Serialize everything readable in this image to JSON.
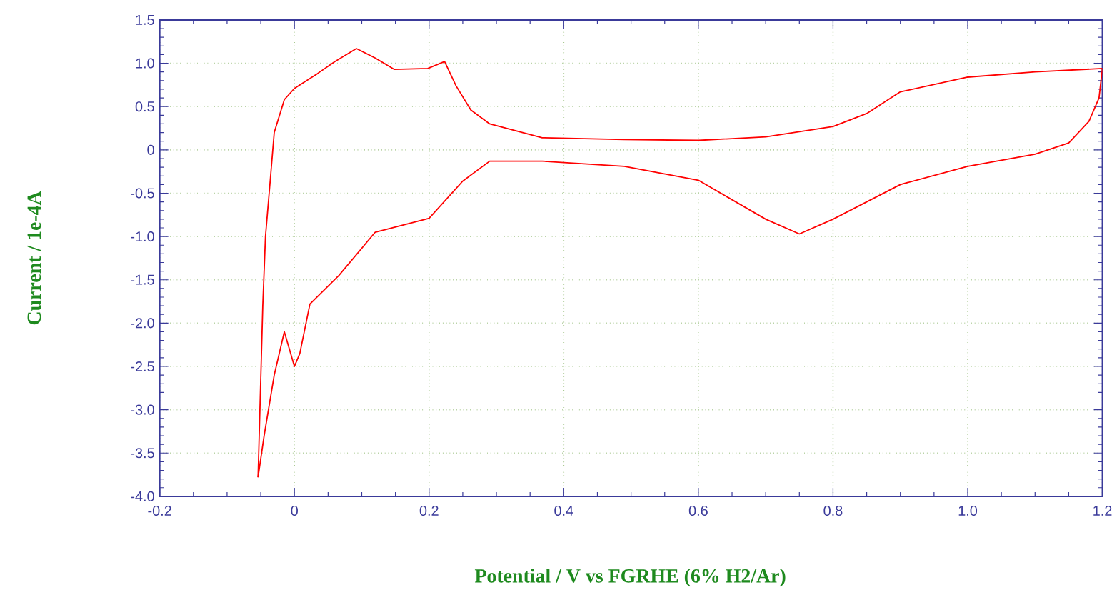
{
  "chart_data": {
    "type": "line",
    "xlabel": "Potential / V vs FGRHE (6% H2/Ar)",
    "ylabel": "Current / 1e-4A",
    "series": [
      {
        "color": "#ff0000",
        "x": [
          -0.054,
          -0.047,
          -0.043,
          -0.036,
          -0.03,
          -0.015,
          0.0,
          0.034,
          0.06,
          0.092,
          0.12,
          0.148,
          0.198,
          0.223,
          0.24,
          0.262,
          0.29,
          0.368,
          0.49,
          0.6,
          0.7,
          0.8,
          0.85,
          0.9,
          1.0,
          1.1,
          1.2
        ],
        "values": [
          -3.78,
          -1.8,
          -1.0,
          -0.36,
          0.2,
          0.58,
          0.71,
          0.88,
          1.02,
          1.17,
          1.06,
          0.93,
          0.94,
          1.02,
          0.74,
          0.46,
          0.3,
          0.14,
          0.12,
          0.11,
          0.15,
          0.27,
          0.42,
          0.67,
          0.84,
          0.9,
          0.94
        ]
      },
      {
        "color": "#ff0000",
        "x": [
          1.2,
          1.195,
          1.18,
          1.15,
          1.1,
          1.0,
          0.9,
          0.8,
          0.75,
          0.7,
          0.6,
          0.49,
          0.368,
          0.29,
          0.25,
          0.2,
          0.12,
          0.066,
          0.023,
          0.008,
          0.0,
          -0.015,
          -0.03,
          -0.045,
          -0.054
        ],
        "values": [
          0.94,
          0.6,
          0.33,
          0.08,
          -0.05,
          -0.19,
          -0.4,
          -0.8,
          -0.97,
          -0.8,
          -0.35,
          -0.19,
          -0.13,
          -0.13,
          -0.36,
          -0.79,
          -0.95,
          -1.45,
          -1.78,
          -2.35,
          -2.5,
          -2.1,
          -2.6,
          -3.3,
          -3.78
        ]
      }
    ],
    "xlim": [
      -0.2,
      1.2
    ],
    "ylim": [
      -4.0,
      1.5
    ],
    "xticks": [
      {
        "value": -0.2,
        "label": "-0.2"
      },
      {
        "value": 0,
        "label": "0"
      },
      {
        "value": 0.2,
        "label": "0.2"
      },
      {
        "value": 0.4,
        "label": "0.4"
      },
      {
        "value": 0.6,
        "label": "0.6"
      },
      {
        "value": 0.8,
        "label": "0.8"
      },
      {
        "value": 1.0,
        "label": "1.0"
      },
      {
        "value": 1.2,
        "label": "1.2"
      }
    ],
    "yticks": [
      {
        "value": -4.0,
        "label": "-4.0"
      },
      {
        "value": -3.5,
        "label": "-3.5"
      },
      {
        "value": -3.0,
        "label": "-3.0"
      },
      {
        "value": -2.5,
        "label": "-2.5"
      },
      {
        "value": -2.0,
        "label": "-2.0"
      },
      {
        "value": -1.5,
        "label": "-1.5"
      },
      {
        "value": -1.0,
        "label": "-1.0"
      },
      {
        "value": -0.5,
        "label": "-0.5"
      },
      {
        "value": 0,
        "label": "0"
      },
      {
        "value": 0.5,
        "label": "0.5"
      },
      {
        "value": 1.0,
        "label": "1.0"
      },
      {
        "value": 1.5,
        "label": "1.5"
      }
    ],
    "grid": true
  }
}
